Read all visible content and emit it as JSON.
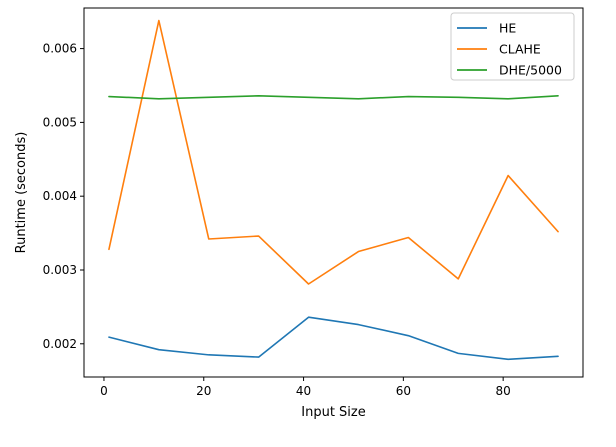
{
  "chart_data": {
    "type": "line",
    "xlabel": "Input Size",
    "ylabel": "Runtime (seconds)",
    "xlim": [
      -4,
      96
    ],
    "ylim": [
      0.00155,
      0.00655
    ],
    "x_ticks": [
      0,
      20,
      40,
      60,
      80
    ],
    "y_ticks": [
      0.002,
      0.003,
      0.004,
      0.005,
      0.006
    ],
    "x_tick_labels": [
      "0",
      "20",
      "40",
      "60",
      "80"
    ],
    "y_tick_labels": [
      "0.002",
      "0.003",
      "0.004",
      "0.005",
      "0.006"
    ],
    "grid": false,
    "legend_position": "top-right",
    "x": [
      1,
      11,
      21,
      31,
      41,
      51,
      61,
      71,
      81,
      91
    ],
    "series": [
      {
        "name": "HE",
        "color": "#1f77b4",
        "values": [
          0.00209,
          0.00192,
          0.00185,
          0.00182,
          0.00236,
          0.00226,
          0.00211,
          0.00187,
          0.00179,
          0.00183
        ]
      },
      {
        "name": "CLAHE",
        "color": "#ff7f0e",
        "values": [
          0.00328,
          0.00638,
          0.00342,
          0.00346,
          0.00281,
          0.00325,
          0.00344,
          0.00288,
          0.00428,
          0.00352
        ]
      },
      {
        "name": "DHE/5000",
        "color": "#2ca02c",
        "values": [
          0.00535,
          0.00532,
          0.00534,
          0.00536,
          0.00534,
          0.00532,
          0.00535,
          0.00534,
          0.00532,
          0.00536
        ]
      }
    ]
  }
}
